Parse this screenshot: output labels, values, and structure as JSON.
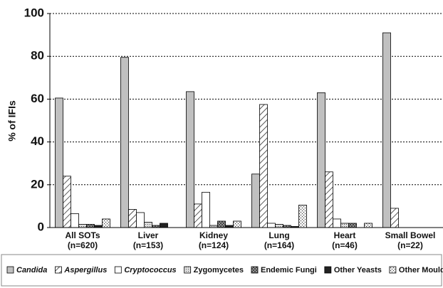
{
  "chart_data": {
    "type": "bar",
    "ylabel": "% of IFIs",
    "categories": [
      [
        "All SOTs",
        "(n=620)"
      ],
      [
        "Liver",
        "(n=153)"
      ],
      [
        "Kidney",
        "(n=124)"
      ],
      [
        "Lung",
        "(n=164)"
      ],
      [
        "Heart",
        "(n=46)"
      ],
      [
        "Small Bowel",
        "(n=22)"
      ]
    ],
    "series": [
      {
        "name": "Candida",
        "color": "#c0c0c0",
        "pattern": "solid",
        "italic": true,
        "values": [
          60.5,
          79.5,
          63.5,
          25,
          63,
          91
        ]
      },
      {
        "name": "Aspergillus",
        "color": "#ffffff",
        "pattern": "diagonal",
        "italic": true,
        "values": [
          24,
          8.5,
          11,
          57.5,
          26,
          9
        ]
      },
      {
        "name": "Cryptococcus",
        "color": "#ffffff",
        "pattern": "solid",
        "italic": true,
        "values": [
          6.5,
          7,
          16.5,
          2,
          4,
          0
        ]
      },
      {
        "name": "Zygomycetes",
        "color": "#d8d8d8",
        "pattern": "dots",
        "italic": false,
        "values": [
          1.5,
          2.5,
          1,
          1.5,
          2,
          0
        ]
      },
      {
        "name": "Endemic Fungi",
        "color": "#909090",
        "pattern": "cross",
        "italic": false,
        "values": [
          1.5,
          1,
          3,
          1,
          2,
          0
        ]
      },
      {
        "name": "Other Yeasts",
        "color": "#222222",
        "pattern": "solid",
        "italic": false,
        "values": [
          1,
          2,
          1,
          0.5,
          0,
          0
        ]
      },
      {
        "name": "Other Mould",
        "color": "#e8e8e8",
        "pattern": "speckle",
        "italic": false,
        "values": [
          4,
          0,
          3,
          10.5,
          2,
          0
        ]
      }
    ],
    "ylim": [
      0,
      100
    ],
    "yticks": [
      0,
      20,
      40,
      60,
      80,
      100
    ],
    "grid": true,
    "legend": "bottom"
  }
}
